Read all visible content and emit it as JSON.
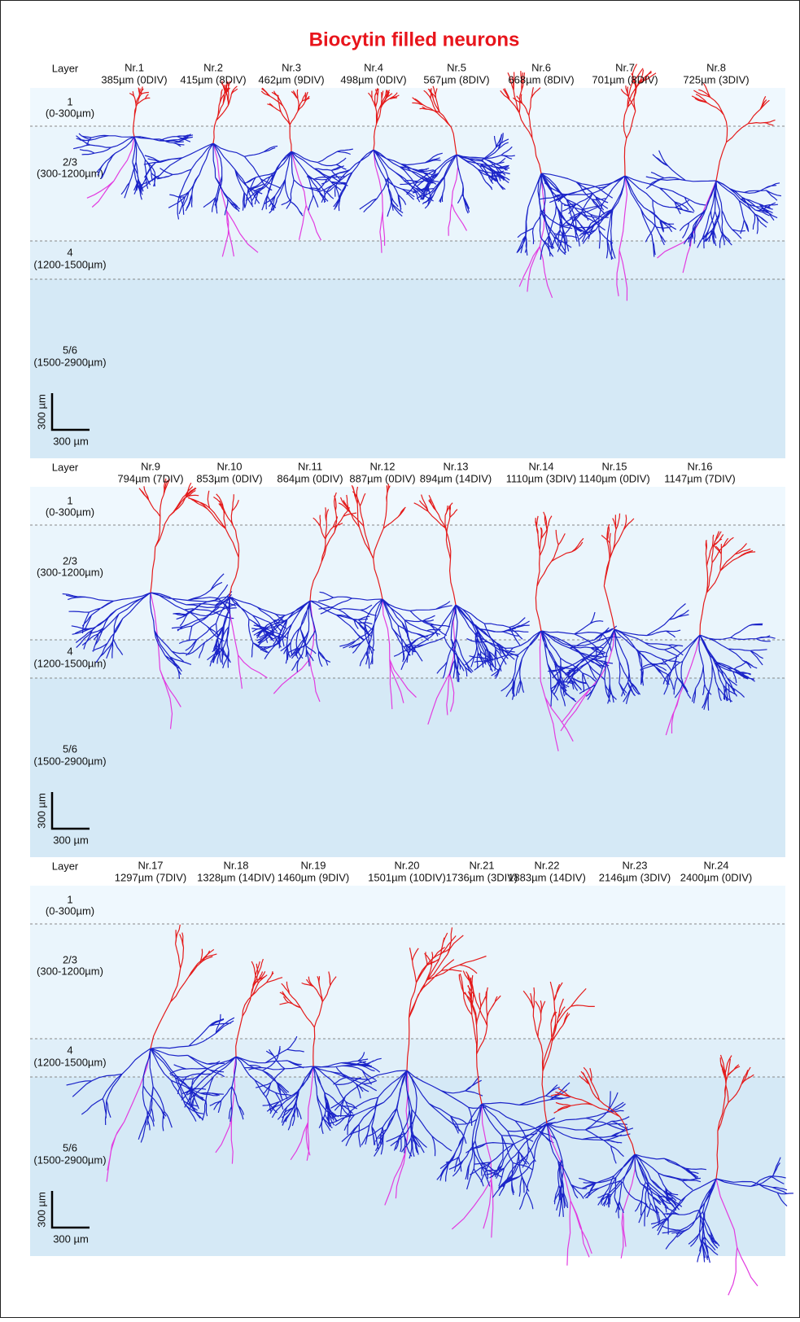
{
  "title": "Biocytin filled neurons",
  "panels": [
    {
      "layer_header": "Layer",
      "neurons": [
        {
          "name": "Nr.1",
          "info": "385µm (0DIV)"
        },
        {
          "name": "Nr.2",
          "info": "415µm (8DIV)"
        },
        {
          "name": "Nr.3",
          "info": "462µm (9DIV)"
        },
        {
          "name": "Nr.4",
          "info": "498µm (0DIV)"
        },
        {
          "name": "Nr.5",
          "info": "567µm (8DIV)"
        },
        {
          "name": "Nr.6",
          "info": "668µm (8DIV)"
        },
        {
          "name": "Nr.7",
          "info": "701µm (8DIV)"
        },
        {
          "name": "Nr.8",
          "info": "725µm (3DIV)"
        }
      ],
      "layers": [
        {
          "name": "1",
          "range": "(0-300µm)"
        },
        {
          "name": "2/3",
          "range": "(300-1200µm)"
        },
        {
          "name": "4",
          "range": "(1200-1500µm)"
        },
        {
          "name": "5/6",
          "range": "(1500-2900µm)"
        }
      ],
      "scale_bar": {
        "vertical": "300 µm",
        "horizontal": "300 µm"
      }
    },
    {
      "layer_header": "Layer",
      "neurons": [
        {
          "name": "Nr.9",
          "info": "794µm (7DIV)"
        },
        {
          "name": "Nr.10",
          "info": "853µm (0DIV)"
        },
        {
          "name": "Nr.11",
          "info": "864µm (0DIV)"
        },
        {
          "name": "Nr.12",
          "info": "887µm (0DIV)"
        },
        {
          "name": "Nr.13",
          "info": "894µm (14DIV)"
        },
        {
          "name": "Nr.14",
          "info": "1110µm (3DIV)"
        },
        {
          "name": "Nr.15",
          "info": "1140µm (0DIV)"
        },
        {
          "name": "Nr.16",
          "info": "1147µm (7DIV)"
        }
      ],
      "layers": [
        {
          "name": "1",
          "range": "(0-300µm)"
        },
        {
          "name": "2/3",
          "range": "(300-1200µm)"
        },
        {
          "name": "4",
          "range": "(1200-1500µm)"
        },
        {
          "name": "5/6",
          "range": "(1500-2900µm)"
        }
      ],
      "scale_bar": {
        "vertical": "300 µm",
        "horizontal": "300 µm"
      }
    },
    {
      "layer_header": "Layer",
      "neurons": [
        {
          "name": "Nr.17",
          "info": "1297µm (7DIV)"
        },
        {
          "name": "Nr.18",
          "info": "1328µm (14DIV)"
        },
        {
          "name": "Nr.19",
          "info": "1460µm (9DIV)"
        },
        {
          "name": "Nr.20",
          "info": "1501µm (10DIV)"
        },
        {
          "name": "Nr.21",
          "info": "1736µm (3DIV)"
        },
        {
          "name": "Nr.22",
          "info": "1883µm (14DIV)"
        },
        {
          "name": "Nr.23",
          "info": "2146µm (3DIV)"
        },
        {
          "name": "Nr.24",
          "info": "2400µm (0DIV)"
        }
      ],
      "layers": [
        {
          "name": "1",
          "range": "(0-300µm)"
        },
        {
          "name": "2/3",
          "range": "(300-1200µm)"
        },
        {
          "name": "4",
          "range": "(1200-1500µm)"
        },
        {
          "name": "5/6",
          "range": "(1500-2900µm)"
        }
      ],
      "scale_bar": {
        "vertical": "300 µm",
        "horizontal": "300 µm"
      }
    }
  ]
}
